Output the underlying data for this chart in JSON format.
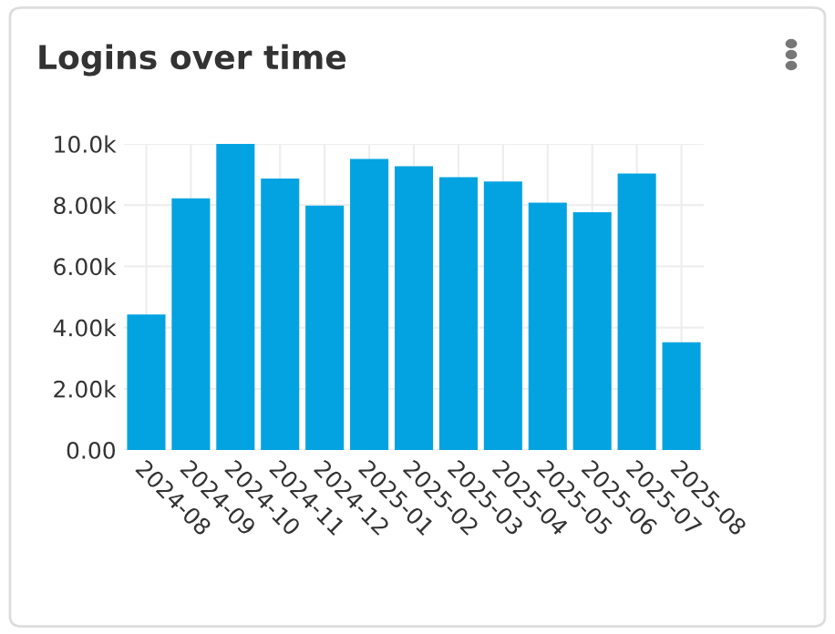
{
  "chart_data": {
    "type": "bar",
    "title": "Logins over time",
    "categories": [
      "2024-08",
      "2024-09",
      "2024-10",
      "2024-11",
      "2024-12",
      "2025-01",
      "2025-02",
      "2025-03",
      "2025-04",
      "2025-05",
      "2025-06",
      "2025-07",
      "2025-08"
    ],
    "values": [
      4430,
      8220,
      10000,
      8870,
      7980,
      9510,
      9270,
      8910,
      8770,
      8080,
      7770,
      9030,
      3520
    ],
    "color": "#02a3e0",
    "ylim": [
      0,
      10000
    ],
    "yticks": [
      {
        "value": 0,
        "label": "0.00"
      },
      {
        "value": 2000,
        "label": "2.00k"
      },
      {
        "value": 4000,
        "label": "4.00k"
      },
      {
        "value": 6000,
        "label": "6.00k"
      },
      {
        "value": 8000,
        "label": "8.00k"
      },
      {
        "value": 10000,
        "label": "10.0k"
      }
    ],
    "grid": true
  }
}
